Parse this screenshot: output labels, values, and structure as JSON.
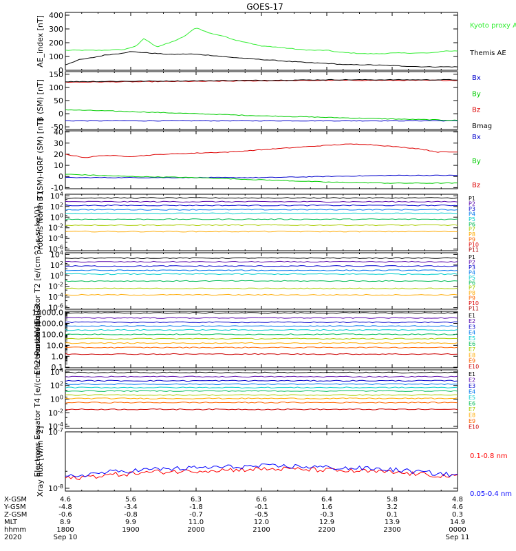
{
  "title": "GOES-17",
  "colors": {
    "black": "#000000",
    "red": "#dd0000",
    "green": "#00cc00",
    "blue": "#0000cc",
    "ae_green": "#33ee33",
    "xray_red": "#ff0000",
    "xray_blue": "#0000ff"
  },
  "ephemeris": {
    "rows": [
      {
        "label": "X-GSM",
        "values": [
          "4.6",
          "5.6",
          "6.3",
          "6.6",
          "6.4",
          "5.8",
          "4.8"
        ]
      },
      {
        "label": "Y-GSM",
        "values": [
          "-4.8",
          "-3.4",
          "-1.8",
          "-0.1",
          "1.6",
          "3.2",
          "4.6"
        ]
      },
      {
        "label": "Z-GSM",
        "values": [
          "-0.6",
          "-0.8",
          "-0.7",
          "-0.5",
          "-0.3",
          "0.1",
          "0.3"
        ]
      },
      {
        "label": "MLT",
        "values": [
          "8.9",
          "9.9",
          "11.0",
          "12.0",
          "12.9",
          "13.9",
          "14.9"
        ]
      },
      {
        "label": "hhmm",
        "values": [
          "1800",
          "1900",
          "2000",
          "2100",
          "2200",
          "2300",
          "0000"
        ]
      }
    ],
    "year": "2020",
    "date_start": "Sep 10",
    "date_end": "Sep 11"
  },
  "chart_data": [
    {
      "type": "line",
      "ylabel": "AE_index [nT]",
      "yticks": [
        "400",
        "300",
        "200",
        "100",
        "0"
      ],
      "ylim": [
        0,
        420
      ],
      "scale": "linear",
      "series": [
        {
          "name": "Kyoto proxy AE",
          "color": "#33ee33",
          "x": [
            18.0,
            18.5,
            18.9,
            19.1,
            19.2,
            19.4,
            19.6,
            19.8,
            20.0,
            20.2,
            20.4,
            20.6,
            20.8,
            21.0,
            21.2,
            21.4,
            21.6,
            21.8,
            22.0,
            22.2,
            22.4,
            22.6,
            22.8,
            23.0,
            23.3,
            23.6,
            23.8,
            24.0
          ],
          "values": [
            145,
            145,
            150,
            180,
            230,
            170,
            200,
            240,
            310,
            270,
            250,
            220,
            200,
            175,
            170,
            160,
            150,
            145,
            145,
            130,
            125,
            120,
            120,
            125,
            125,
            125,
            140,
            140
          ]
        },
        {
          "name": "Themis AE",
          "color": "#000000",
          "x": [
            18.0,
            18.2,
            18.4,
            18.6,
            18.8,
            19.0,
            19.3,
            19.6,
            19.9,
            20.2,
            20.5,
            20.8,
            21.1,
            21.4,
            21.7,
            22.0,
            22.3,
            22.6,
            22.9,
            23.2,
            23.5,
            23.8,
            24.0
          ],
          "values": [
            40,
            75,
            90,
            110,
            120,
            135,
            125,
            115,
            118,
            110,
            95,
            85,
            75,
            65,
            55,
            50,
            40,
            40,
            35,
            30,
            25,
            25,
            25
          ]
        }
      ],
      "legend": [
        "Kyoto proxy AE",
        "Themis AE"
      ]
    },
    {
      "type": "line",
      "ylabel": "B (SM) [nT]",
      "yticks": [
        "150",
        "100",
        "50",
        "0",
        "-50"
      ],
      "ylim": [
        -60,
        160
      ],
      "scale": "linear",
      "series": [
        {
          "name": "Bx",
          "color": "#0000cc",
          "x": [
            18,
            24
          ],
          "values": [
            -27,
            -27
          ]
        },
        {
          "name": "By",
          "color": "#00cc00",
          "x": [
            18,
            19,
            20,
            21,
            22,
            23,
            24
          ],
          "values": [
            15,
            8,
            0,
            -8,
            -14,
            -20,
            -25
          ]
        },
        {
          "name": "Bz",
          "color": "#dd0000",
          "x": [
            18,
            20,
            22,
            24
          ],
          "values": [
            120,
            123,
            127,
            127
          ]
        },
        {
          "name": "Bmag",
          "color": "#000000",
          "x": [
            18,
            20,
            22,
            24
          ],
          "values": [
            122,
            125,
            129,
            129
          ]
        }
      ],
      "legend": [
        "Bx",
        "By",
        "Bz",
        "Bmag"
      ]
    },
    {
      "type": "line",
      "ylabel": "B (SM)-IGRF (SM) [nT]",
      "yticks": [
        "40",
        "30",
        "20",
        "10",
        "0",
        "-10"
      ],
      "ylim": [
        -11,
        41
      ],
      "scale": "linear",
      "series": [
        {
          "name": "Bx",
          "color": "#0000cc",
          "x": [
            18,
            19,
            20,
            21,
            22,
            23,
            24
          ],
          "values": [
            -1,
            -1,
            -1,
            -1,
            0,
            1,
            1
          ]
        },
        {
          "name": "By",
          "color": "#00cc00",
          "x": [
            18,
            19,
            20,
            21,
            22,
            23,
            24
          ],
          "values": [
            2,
            0,
            -1,
            -3,
            -5,
            -6,
            -6
          ]
        },
        {
          "name": "Bz",
          "color": "#dd0000",
          "x": [
            18.0,
            18.3,
            18.6,
            19.0,
            19.5,
            20.0,
            20.5,
            21.0,
            21.5,
            22.0,
            22.3,
            22.6,
            23.0,
            23.4,
            23.7,
            24.0
          ],
          "values": [
            20,
            17,
            19,
            18,
            20,
            21,
            22,
            24,
            26,
            28,
            29,
            29,
            27,
            25,
            22,
            22
          ]
        }
      ],
      "legend": [
        "Bx",
        "By",
        "Bz"
      ]
    },
    {
      "type": "line",
      "ylabel": "Protons North T1",
      "yticks": [
        "10^4",
        "10^2",
        "10^0",
        "10^-2",
        "10^-4",
        "10^-6"
      ],
      "ylim": [
        -6.3,
        4.3
      ],
      "scale": "log10",
      "series": [
        {
          "name": "P1",
          "color": "#000000",
          "values": [
            3.6
          ]
        },
        {
          "name": "P2",
          "color": "#5500aa",
          "values": [
            2.9
          ]
        },
        {
          "name": "P3",
          "color": "#0000cc",
          "values": [
            2.2
          ]
        },
        {
          "name": "P4",
          "color": "#0077ee",
          "values": [
            1.4
          ]
        },
        {
          "name": "P5",
          "color": "#00cccc",
          "values": [
            0.7
          ]
        },
        {
          "name": "P6",
          "color": "#00bb55",
          "values": [
            -0.4
          ]
        },
        {
          "name": "P7",
          "color": "#aacc00",
          "values": [
            -1.5
          ]
        },
        {
          "name": "P8",
          "color": "#ffaa00",
          "values": [
            -2.7
          ]
        },
        {
          "name": "P9",
          "color": "#ff6600",
          "values": []
        },
        {
          "name": "P10",
          "color": "#dd0000",
          "values": []
        },
        {
          "name": "P11",
          "color": "#aa0000",
          "values": []
        }
      ],
      "legend": [
        "P1",
        "P2",
        "P3",
        "P4",
        "P5",
        "P6",
        "P7",
        "P8",
        "P9",
        "P10",
        "P11"
      ]
    },
    {
      "type": "line",
      "ylabel": "Protons Equator T2 [e/(cm^2-s-sr-keV)]",
      "yticks": [
        "10^4",
        "10^2",
        "10^0",
        "10^-2",
        "10^-4",
        "10^-6"
      ],
      "ylim": [
        -6.3,
        4.3
      ],
      "scale": "log10",
      "series": [
        {
          "name": "P1",
          "color": "#000000",
          "values": [
            3.3
          ]
        },
        {
          "name": "P2",
          "color": "#5500aa",
          "values": [
            2.6
          ]
        },
        {
          "name": "P3",
          "color": "#0000cc",
          "values": [
            1.8
          ]
        },
        {
          "name": "P4",
          "color": "#0077ee",
          "values": [
            1.0
          ]
        },
        {
          "name": "P5",
          "color": "#00cccc",
          "values": [
            0.3
          ]
        },
        {
          "name": "P6",
          "color": "#00bb55",
          "values": [
            -1.0
          ]
        },
        {
          "name": "P7",
          "color": "#aacc00",
          "values": [
            -2.4
          ]
        },
        {
          "name": "P8",
          "color": "#ffaa00",
          "values": [
            -3.6
          ]
        },
        {
          "name": "P9",
          "color": "#ff6600",
          "values": []
        },
        {
          "name": "P10",
          "color": "#dd0000",
          "values": []
        },
        {
          "name": "P11",
          "color": "#aa0000",
          "values": []
        }
      ],
      "legend": [
        "P1",
        "P2",
        "P3",
        "P4",
        "P5",
        "P6",
        "P7",
        "P8",
        "P9",
        "P10",
        "P11"
      ]
    },
    {
      "type": "line",
      "ylabel": "Electrons North T3",
      "yticks": [
        "10000.0",
        "1000.0",
        "100.0",
        "10.0",
        "1.0",
        "0.1"
      ],
      "ylim": [
        -1.05,
        4.1
      ],
      "scale": "log10",
      "series": [
        {
          "name": "E1",
          "color": "#000000",
          "values": [
            3.95
          ]
        },
        {
          "name": "E2",
          "color": "#5500aa",
          "values": [
            3.5
          ]
        },
        {
          "name": "E3",
          "color": "#0000cc",
          "values": [
            3.1
          ]
        },
        {
          "name": "E4",
          "color": "#0077ee",
          "values": [
            2.75
          ]
        },
        {
          "name": "E5",
          "color": "#00cccc",
          "values": [
            2.4
          ]
        },
        {
          "name": "E6",
          "color": "#00bb55",
          "values": [
            2.0
          ]
        },
        {
          "name": "E7",
          "color": "#aacc00",
          "values": [
            1.6
          ]
        },
        {
          "name": "E8",
          "color": "#ffaa00",
          "values": [
            1.2
          ]
        },
        {
          "name": "E9",
          "color": "#ff6600",
          "values": [
            0.8
          ]
        },
        {
          "name": "E10",
          "color": "#cc0000",
          "values": [
            0.2
          ]
        }
      ],
      "legend": [
        "E1",
        "E2",
        "E3",
        "E4",
        "E5",
        "E6",
        "E7",
        "E8",
        "E9",
        "E10"
      ]
    },
    {
      "type": "line",
      "ylabel": "Electrons Equator T4 [e/(cm^2-s-sr-keV)]",
      "yticks": [
        "10^4",
        "10^2",
        "10^0",
        "10^-2",
        "10^-4"
      ],
      "ylim": [
        -4.3,
        4.3
      ],
      "scale": "log10",
      "series": [
        {
          "name": "E1",
          "color": "#000000",
          "values": [
            3.9
          ]
        },
        {
          "name": "E2",
          "color": "#5500aa",
          "values": [
            3.3
          ]
        },
        {
          "name": "E3",
          "color": "#0000cc",
          "values": [
            2.7
          ]
        },
        {
          "name": "E4",
          "color": "#0077ee",
          "values": [
            2.2
          ]
        },
        {
          "name": "E5",
          "color": "#00cccc",
          "values": [
            1.7
          ]
        },
        {
          "name": "E6",
          "color": "#00bb55",
          "values": [
            1.2
          ]
        },
        {
          "name": "E7",
          "color": "#aacc00",
          "values": [
            0.6
          ]
        },
        {
          "name": "E8",
          "color": "#ffaa00",
          "values": [
            0.1
          ]
        },
        {
          "name": "E9",
          "color": "#ff6600",
          "values": [
            -0.5
          ]
        },
        {
          "name": "E10",
          "color": "#cc0000",
          "values": [
            -1.5
          ]
        }
      ],
      "legend": [
        "E1",
        "E2",
        "E3",
        "E4",
        "E5",
        "E6",
        "E7",
        "E8",
        "E9",
        "E10"
      ]
    },
    {
      "type": "line",
      "ylabel": "Xray flux [W/m^2]",
      "yticks": [
        "10^-7",
        "10^-8"
      ],
      "ylim": [
        -8.05,
        -7.0
      ],
      "scale": "log10",
      "series": [
        {
          "name": "0.1-0.8 nm",
          "color": "#ff0000",
          "x": [
            18.0,
            18.3,
            18.6,
            19.0,
            19.4,
            19.8,
            20.2,
            20.6,
            21.0,
            21.4,
            21.8,
            22.2,
            22.6,
            23.0,
            23.4,
            23.8,
            24.0
          ],
          "values": [
            -7.83,
            -7.8,
            -7.77,
            -7.74,
            -7.71,
            -7.7,
            -7.68,
            -7.67,
            -7.66,
            -7.66,
            -7.67,
            -7.69,
            -7.7,
            -7.72,
            -7.75,
            -7.78,
            -7.8
          ]
        },
        {
          "name": "0.05-0.4 nm",
          "color": "#0000ff",
          "x": [
            18.0,
            18.3,
            18.6,
            19.0,
            19.4,
            19.8,
            20.2,
            20.6,
            21.0,
            21.4,
            21.8,
            22.2,
            22.6,
            23.0,
            23.4,
            23.8,
            24.0
          ],
          "values": [
            -7.8,
            -7.76,
            -7.72,
            -7.69,
            -7.66,
            -7.65,
            -7.63,
            -7.62,
            -7.61,
            -7.61,
            -7.62,
            -7.64,
            -7.65,
            -7.67,
            -7.71,
            -7.75,
            -7.77
          ]
        }
      ],
      "legend": [
        "0.1-0.8 nm",
        "0.05-0.4 nm"
      ]
    }
  ]
}
